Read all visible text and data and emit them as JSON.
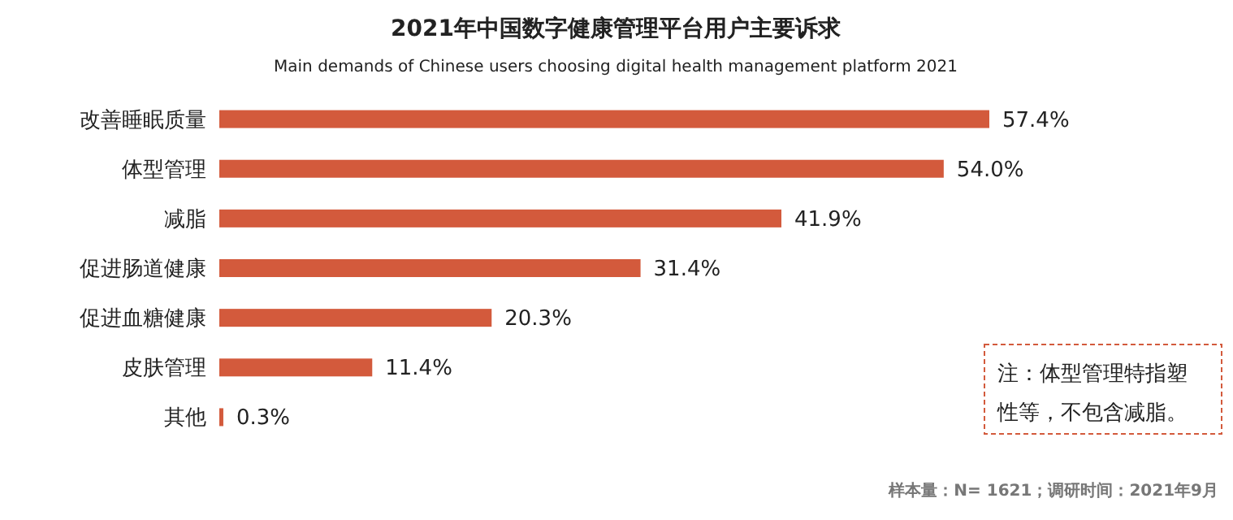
{
  "chart_data": {
    "type": "bar",
    "orientation": "horizontal",
    "title": "2021年中国数字健康管理平台用户主要诉求",
    "subtitle": "Main demands of Chinese users choosing digital health management platform 2021",
    "categories": [
      "改善睡眠质量",
      "体型管理",
      "减脂",
      "促进肠道健康",
      "促进血糖健康",
      "皮肤管理",
      "其他"
    ],
    "values": [
      57.4,
      54.0,
      41.9,
      31.4,
      20.3,
      11.4,
      0.3
    ],
    "value_labels": [
      "57.4%",
      "54.0%",
      "41.9%",
      "31.4%",
      "20.3%",
      "11.4%",
      "0.3%"
    ],
    "color": "#d35a3c",
    "annotations": [
      "注：体型管理特指塑性等，不包含减脂。",
      "样本量：N= 1621；调研时间：2021年9月"
    ]
  }
}
